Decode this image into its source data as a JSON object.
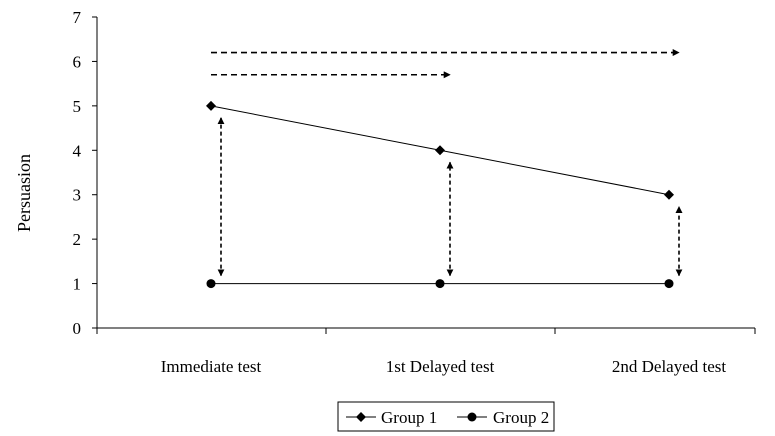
{
  "chart_data": {
    "type": "line",
    "ylabel": "Persuasion",
    "xlabel": "",
    "ylim": [
      0,
      7
    ],
    "yticks": [
      0,
      1,
      2,
      3,
      4,
      5,
      6,
      7
    ],
    "categories": [
      "Immediate test",
      "1st Delayed test",
      "2nd Delayed test"
    ],
    "series": [
      {
        "name": "Group 1",
        "marker": "diamond",
        "values": [
          5,
          4,
          3
        ]
      },
      {
        "name": "Group 2",
        "marker": "circle",
        "values": [
          1,
          1,
          1
        ]
      }
    ],
    "grid": false,
    "legend": "bottom",
    "annotations": [
      {
        "type": "dashed-arrow",
        "direction": "right",
        "from_category": "Immediate test",
        "to_category": "2nd Delayed test",
        "y": 6.2
      },
      {
        "type": "dashed-arrow",
        "direction": "right",
        "from_category": "Immediate test",
        "to_category": "1st Delayed test",
        "y": 5.7
      },
      {
        "type": "dashed-double-arrow",
        "direction": "vertical",
        "category": "Immediate test",
        "from": 1,
        "to": 5
      },
      {
        "type": "dashed-double-arrow",
        "direction": "vertical",
        "category": "1st Delayed test",
        "from": 1,
        "to": 4
      },
      {
        "type": "dashed-double-arrow",
        "direction": "vertical",
        "category": "2nd Delayed test",
        "from": 1,
        "to": 3
      }
    ]
  }
}
